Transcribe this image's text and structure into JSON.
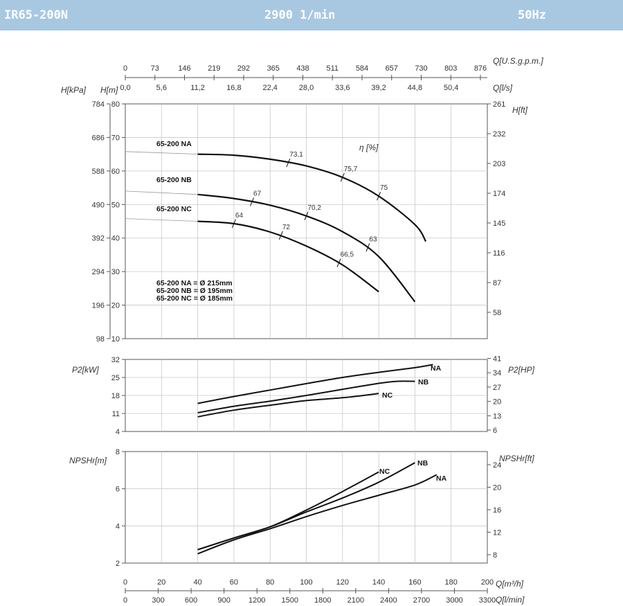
{
  "header": {
    "model": "IR65-200N",
    "speed": "2900 1/min",
    "frequency": "50Hz"
  },
  "chart_data": [
    {
      "type": "line",
      "name": "head",
      "x_axis": {
        "label": "Q[m³/h]",
        "range": [
          0,
          200
        ]
      },
      "y_left_label": "H[m]",
      "y_left_range": [
        10,
        80
      ],
      "y_left_ticks": [
        "10",
        "20",
        "30",
        "40",
        "50",
        "60",
        "70",
        "80"
      ],
      "y_kpa_label": "H[kPa]",
      "y_kpa_ticks": [
        "98",
        "196",
        "294",
        "392",
        "490",
        "588",
        "686",
        "784"
      ],
      "y_right_label": "H[ft]",
      "y_right_ticks": [
        "58",
        "87",
        "116",
        "145",
        "174",
        "203",
        "232",
        "261"
      ],
      "top_axis_usgpm": {
        "label": "Q[U.S.g.p.m.]",
        "ticks": [
          "0",
          "73",
          "146",
          "219",
          "292",
          "365",
          "438",
          "511",
          "584",
          "657",
          "730",
          "803",
          "876"
        ]
      },
      "top_axis_ls": {
        "label": "Q[l/s]",
        "ticks": [
          "0,0",
          "5,6",
          "11,2",
          "16,8",
          "22,4",
          "28,0",
          "33,6",
          "39,2",
          "44,8",
          "50,4"
        ]
      },
      "efficiency_label": "η [%]",
      "series": [
        {
          "name": "65-200 NA",
          "x": [
            0,
            40,
            60,
            80,
            100,
            120,
            140,
            160,
            166
          ],
          "y": [
            65.8,
            65,
            64.7,
            63.5,
            61.5,
            58.1,
            52.5,
            44,
            39
          ]
        },
        {
          "name": "65-200 NB",
          "x": [
            0,
            40,
            60,
            80,
            100,
            120,
            140,
            160
          ],
          "y": [
            54,
            53,
            51.8,
            49.8,
            46.6,
            41.9,
            34.5,
            21
          ]
        },
        {
          "name": "65-200 NC",
          "x": [
            0,
            40,
            60,
            80,
            100,
            120,
            140
          ],
          "y": [
            45.8,
            45,
            44.3,
            41.8,
            37.6,
            32,
            24
          ]
        }
      ],
      "efficiency_marks": [
        {
          "value": "73,1",
          "x": 90,
          "y": 62.4
        },
        {
          "value": "75,7",
          "x": 120,
          "y": 58.1
        },
        {
          "value": "75",
          "x": 140,
          "y": 52.5
        },
        {
          "value": "67",
          "x": 70,
          "y": 50.8
        },
        {
          "value": "70,2",
          "x": 100,
          "y": 46.6
        },
        {
          "value": "63",
          "x": 134,
          "y": 37.2
        },
        {
          "value": "64",
          "x": 60,
          "y": 44.3
        },
        {
          "value": "72",
          "x": 86,
          "y": 40.8
        },
        {
          "value": "66,5",
          "x": 118,
          "y": 32.6
        }
      ],
      "diameter_notes": [
        "65-200 NA = Ø 215mm",
        "65-200 NB = Ø 195mm",
        "65-200 NC = Ø 185mm"
      ]
    },
    {
      "type": "line",
      "name": "power",
      "y_left_label": "P2[kW]",
      "y_left_range": [
        4,
        32
      ],
      "y_left_ticks": [
        "4",
        "11",
        "18",
        "25",
        "32"
      ],
      "y_right_label": "P2[HP]",
      "y_right_ticks": [
        "6",
        "13",
        "20",
        "27",
        "34",
        "41"
      ],
      "series": [
        {
          "name": "NA",
          "x": [
            40,
            60,
            80,
            100,
            120,
            140,
            160,
            170
          ],
          "y": [
            14.9,
            17.6,
            20.1,
            22.6,
            25,
            27,
            28.8,
            30
          ]
        },
        {
          "name": "NB",
          "x": [
            40,
            60,
            80,
            100,
            120,
            140,
            150,
            160
          ],
          "y": [
            11.3,
            13.8,
            15.8,
            18,
            20.4,
            22.7,
            23.5,
            23.5
          ]
        },
        {
          "name": "NC",
          "x": [
            40,
            60,
            80,
            100,
            120,
            135,
            140
          ],
          "y": [
            9.7,
            12.3,
            14.2,
            16,
            17.1,
            18.3,
            18.8
          ]
        }
      ]
    },
    {
      "type": "line",
      "name": "npsh",
      "y_left_label": "NPSHr[m]",
      "y_left_range": [
        2,
        8
      ],
      "y_left_ticks": [
        "2",
        "4",
        "6",
        "8"
      ],
      "y_right_label": "NPSHr[ft]",
      "y_right_ticks": [
        "8",
        "12",
        "16",
        "20",
        "24"
      ],
      "bottom_axis_m3h": {
        "label": "Q[m³/h]",
        "ticks": [
          "0",
          "20",
          "40",
          "60",
          "80",
          "100",
          "120",
          "140",
          "160",
          "180",
          "200"
        ]
      },
      "bottom_axis_lmin": {
        "label": "Q[l/min]",
        "ticks": [
          "0",
          "300",
          "600",
          "900",
          "1200",
          "1500",
          "1800",
          "2100",
          "2400",
          "2700",
          "3000",
          "3300"
        ]
      },
      "series": [
        {
          "name": "NA",
          "x": [
            40,
            60,
            80,
            100,
            120,
            140,
            160,
            172
          ],
          "y": [
            2.5,
            3.25,
            3.85,
            4.5,
            5.1,
            5.65,
            6.2,
            6.75
          ]
        },
        {
          "name": "NB",
          "x": [
            40,
            60,
            80,
            100,
            120,
            140,
            160
          ],
          "y": [
            2.72,
            3.35,
            3.95,
            4.75,
            5.5,
            6.35,
            7.4
          ]
        },
        {
          "name": "NC",
          "x": [
            40,
            60,
            80,
            100,
            120,
            140
          ],
          "y": [
            2.72,
            3.35,
            3.95,
            4.85,
            5.85,
            6.9
          ]
        }
      ]
    }
  ]
}
